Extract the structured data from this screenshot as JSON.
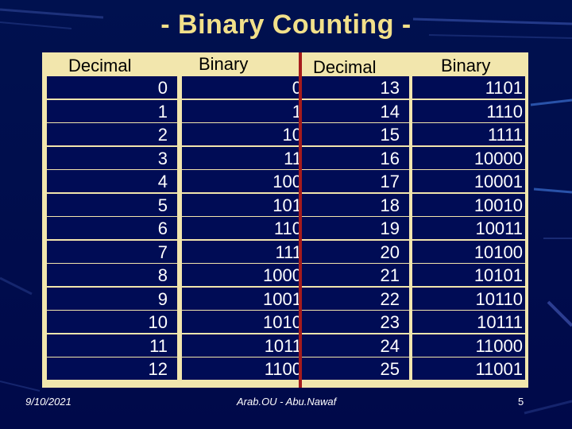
{
  "title": "- Binary Counting -",
  "headers": {
    "decimal_left": "Decimal",
    "binary_left": "Binary",
    "decimal_right": "Decimal",
    "binary_right": "Binary"
  },
  "rows_left": [
    {
      "decimal": "0",
      "binary": "0"
    },
    {
      "decimal": "1",
      "binary": "1"
    },
    {
      "decimal": "2",
      "binary": "10"
    },
    {
      "decimal": "3",
      "binary": "11"
    },
    {
      "decimal": "4",
      "binary": "100"
    },
    {
      "decimal": "5",
      "binary": "101"
    },
    {
      "decimal": "6",
      "binary": "110"
    },
    {
      "decimal": "7",
      "binary": "111"
    },
    {
      "decimal": "8",
      "binary": "1000"
    },
    {
      "decimal": "9",
      "binary": "1001"
    },
    {
      "decimal": "10",
      "binary": "1010"
    },
    {
      "decimal": "11",
      "binary": "1011"
    },
    {
      "decimal": "12",
      "binary": "1100"
    }
  ],
  "rows_right": [
    {
      "decimal": "13",
      "binary": "1101"
    },
    {
      "decimal": "14",
      "binary": "1110"
    },
    {
      "decimal": "15",
      "binary": "1111"
    },
    {
      "decimal": "16",
      "binary": "10000"
    },
    {
      "decimal": "17",
      "binary": "10001"
    },
    {
      "decimal": "18",
      "binary": "10010"
    },
    {
      "decimal": "19",
      "binary": "10011"
    },
    {
      "decimal": "20",
      "binary": "10100"
    },
    {
      "decimal": "21",
      "binary": "10101"
    },
    {
      "decimal": "22",
      "binary": "10110"
    },
    {
      "decimal": "23",
      "binary": "10111"
    },
    {
      "decimal": "24",
      "binary": "11000"
    },
    {
      "decimal": "25",
      "binary": "11001"
    }
  ],
  "footer": {
    "date": "9/10/2021",
    "author": "Arab.OU - Abu.Nawaf",
    "page_number": "5"
  },
  "colors": {
    "background": "#000c55",
    "title": "#f2e08a",
    "table_fill": "#f2e6ad",
    "divider": "#a61c1c",
    "text": "#ffffff"
  }
}
